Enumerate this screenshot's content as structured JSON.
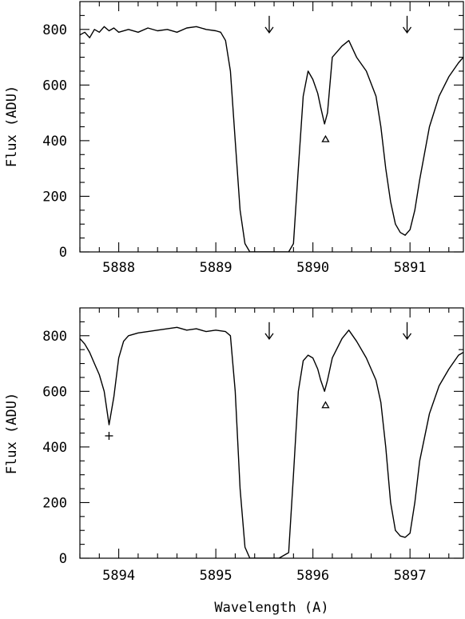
{
  "chart_data": [
    {
      "type": "line",
      "xlabel": "",
      "ylabel": "Flux (ADU)",
      "xlim": [
        5887.6,
        5891.55
      ],
      "ylim": [
        0,
        900
      ],
      "xticks": [
        5888,
        5889,
        5890,
        5891
      ],
      "xtick_labels": [
        "5888",
        "5889",
        "5890",
        "5891"
      ],
      "yticks": [
        0,
        200,
        400,
        600,
        800
      ],
      "ytick_labels": [
        "0",
        "200",
        "400",
        "600",
        "800"
      ],
      "grid": false,
      "series": [
        {
          "x": [
            5887.6,
            5887.65,
            5887.7,
            5887.75,
            5887.8,
            5887.85,
            5887.9,
            5887.95,
            5888.0,
            5888.1,
            5888.2,
            5888.3,
            5888.4,
            5888.5,
            5888.6,
            5888.7,
            5888.8,
            5888.9,
            5889.0,
            5889.05,
            5889.1,
            5889.15,
            5889.2,
            5889.25,
            5889.3,
            5889.35,
            5889.45,
            5889.6,
            5889.75,
            5889.8,
            5889.85,
            5889.9,
            5889.95,
            5890.0,
            5890.05,
            5890.08,
            5890.12,
            5890.15,
            5890.2,
            5890.3,
            5890.37,
            5890.45,
            5890.55,
            5890.65,
            5890.7,
            5890.75,
            5890.8,
            5890.85,
            5890.9,
            5890.95,
            5891.0,
            5891.05,
            5891.1,
            5891.2,
            5891.3,
            5891.4,
            5891.5,
            5891.55
          ],
          "y": [
            780,
            790,
            770,
            800,
            790,
            810,
            795,
            805,
            790,
            800,
            790,
            805,
            795,
            800,
            790,
            805,
            810,
            800,
            795,
            790,
            760,
            650,
            400,
            150,
            30,
            0,
            0,
            0,
            0,
            30,
            300,
            560,
            650,
            620,
            570,
            520,
            460,
            500,
            700,
            740,
            760,
            700,
            650,
            560,
            450,
            300,
            180,
            100,
            70,
            60,
            80,
            150,
            260,
            450,
            560,
            630,
            680,
            700
          ]
        }
      ],
      "annotations": [
        {
          "type": "arrow-down",
          "x": 5889.55,
          "y": 820
        },
        {
          "type": "arrow-down",
          "x": 5890.97,
          "y": 820
        },
        {
          "type": "triangle",
          "x": 5890.13,
          "y": 405
        }
      ]
    },
    {
      "type": "line",
      "xlabel": "Wavelength (A)",
      "ylabel": "Flux (ADU)",
      "xlim": [
        5893.6,
        5897.55
      ],
      "ylim": [
        0,
        900
      ],
      "xticks": [
        5894,
        5895,
        5896,
        5897
      ],
      "xtick_labels": [
        "5894",
        "5895",
        "5896",
        "5897"
      ],
      "yticks": [
        0,
        200,
        400,
        600,
        800
      ],
      "ytick_labels": [
        "0",
        "200",
        "400",
        "600",
        "800"
      ],
      "grid": false,
      "series": [
        {
          "x": [
            5893.6,
            5893.65,
            5893.7,
            5893.75,
            5893.8,
            5893.85,
            5893.9,
            5893.95,
            5894.0,
            5894.05,
            5894.1,
            5894.2,
            5894.3,
            5894.4,
            5894.5,
            5894.6,
            5894.7,
            5894.8,
            5894.9,
            5895.0,
            5895.1,
            5895.15,
            5895.2,
            5895.25,
            5895.3,
            5895.35,
            5895.45,
            5895.55,
            5895.65,
            5895.75,
            5895.8,
            5895.85,
            5895.9,
            5895.95,
            5896.0,
            5896.05,
            5896.08,
            5896.12,
            5896.15,
            5896.2,
            5896.3,
            5896.37,
            5896.45,
            5896.55,
            5896.65,
            5896.7,
            5896.75,
            5896.8,
            5896.85,
            5896.9,
            5896.95,
            5897.0,
            5897.05,
            5897.1,
            5897.2,
            5897.3,
            5897.4,
            5897.5,
            5897.55
          ],
          "y": [
            790,
            770,
            740,
            700,
            660,
            600,
            480,
            580,
            720,
            780,
            800,
            810,
            815,
            820,
            825,
            830,
            820,
            825,
            815,
            820,
            815,
            800,
            600,
            250,
            40,
            0,
            0,
            0,
            0,
            20,
            300,
            600,
            710,
            730,
            720,
            680,
            640,
            600,
            640,
            720,
            790,
            820,
            780,
            720,
            640,
            560,
            400,
            200,
            100,
            80,
            75,
            90,
            200,
            350,
            520,
            620,
            680,
            730,
            740
          ]
        }
      ],
      "annotations": [
        {
          "type": "arrow-down",
          "x": 5895.55,
          "y": 820
        },
        {
          "type": "arrow-down",
          "x": 5896.97,
          "y": 820
        },
        {
          "type": "triangle",
          "x": 5896.13,
          "y": 550
        },
        {
          "type": "plus",
          "x": 5893.9,
          "y": 440
        }
      ]
    }
  ]
}
